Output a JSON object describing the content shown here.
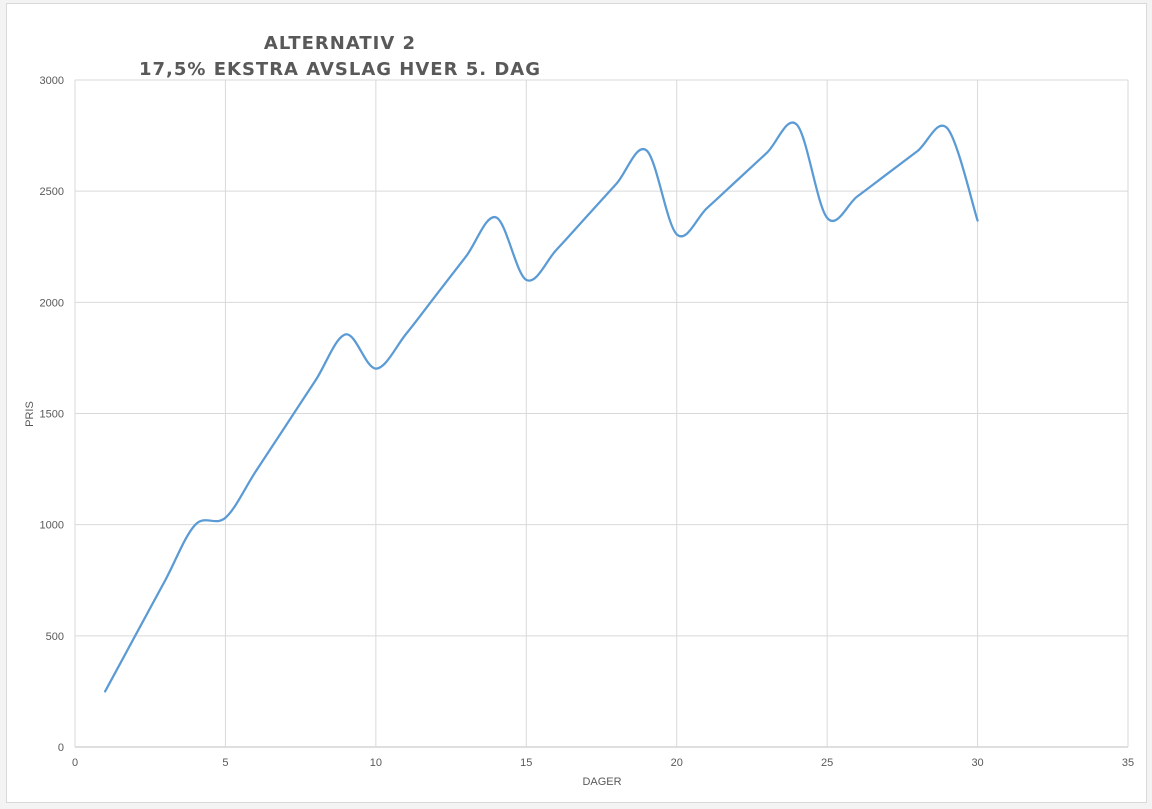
{
  "chart_data": {
    "type": "line",
    "smooth": true,
    "title": "ALTERNATIV 2",
    "subtitle": "17,5% EKSTRA AVSLAG HVER 5. DAG",
    "xlabel": "DAGER",
    "ylabel": "PRIS",
    "xlim": [
      0,
      35
    ],
    "ylim": [
      0,
      3000
    ],
    "xticks": [
      0,
      5,
      10,
      15,
      20,
      25,
      30,
      35
    ],
    "yticks": [
      0,
      500,
      1000,
      1500,
      2000,
      2500,
      3000
    ],
    "grid": true,
    "legend": "none",
    "line_color": "#5b9bd5",
    "series": [
      {
        "x": [
          1,
          2,
          3,
          4,
          5,
          6,
          7,
          8,
          9,
          10,
          11,
          12,
          13,
          14,
          15,
          16,
          17,
          18,
          19,
          20,
          21,
          22,
          23,
          24,
          25,
          26,
          27,
          28,
          29,
          30
        ],
        "values": [
          250,
          500,
          750,
          1000,
          1031,
          1238,
          1444,
          1650,
          1856,
          1702,
          1857,
          2032,
          2207,
          2382,
          2101,
          2236,
          2385,
          2534,
          2683,
          2306,
          2423,
          2548,
          2673,
          2798,
          2380,
          2476,
          2578,
          2680,
          2782,
          2368
        ]
      }
    ]
  }
}
